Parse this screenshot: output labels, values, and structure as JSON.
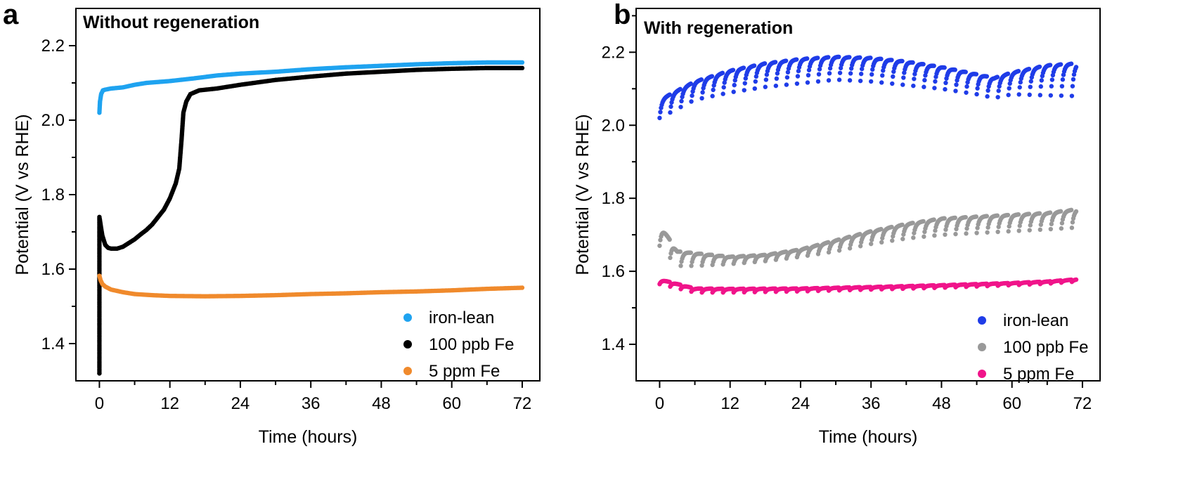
{
  "chart_data": [
    {
      "panel": "a",
      "title": "Without regeneration",
      "type": "scatter",
      "xlabel": "Time (hours)",
      "ylabel": "Potential (V vs RHE)",
      "xlim": [
        -4,
        75
      ],
      "ylim": [
        1.3,
        2.3
      ],
      "xticks": [
        0,
        12,
        24,
        36,
        48,
        60,
        72
      ],
      "yticks": [
        1.4,
        1.6,
        1.8,
        2.0,
        2.2
      ],
      "xtick_labels": [
        "0",
        "12",
        "24",
        "36",
        "48",
        "60",
        "72"
      ],
      "ytick_labels": [
        "1.4",
        "1.6",
        "1.8",
        "2.0",
        "2.2"
      ],
      "legend_position": "bottom-right",
      "grid": false,
      "series": [
        {
          "name": "iron-lean",
          "color": "#1fa3f0",
          "points": [
            [
              0,
              2.02
            ],
            [
              0.1,
              2.05
            ],
            [
              0.3,
              2.07
            ],
            [
              0.6,
              2.08
            ],
            [
              1,
              2.082
            ],
            [
              2,
              2.085
            ],
            [
              4,
              2.088
            ],
            [
              6,
              2.095
            ],
            [
              8,
              2.1
            ],
            [
              12,
              2.105
            ],
            [
              16,
              2.112
            ],
            [
              20,
              2.12
            ],
            [
              24,
              2.125
            ],
            [
              30,
              2.13
            ],
            [
              36,
              2.137
            ],
            [
              42,
              2.142
            ],
            [
              48,
              2.146
            ],
            [
              54,
              2.15
            ],
            [
              60,
              2.153
            ],
            [
              66,
              2.155
            ],
            [
              72,
              2.155
            ]
          ]
        },
        {
          "name": "100 ppb Fe",
          "color": "#000000",
          "points": [
            [
              0,
              1.32
            ],
            [
              0,
              1.74
            ],
            [
              0.2,
              1.72
            ],
            [
              0.5,
              1.69
            ],
            [
              1,
              1.665
            ],
            [
              1.5,
              1.657
            ],
            [
              2,
              1.655
            ],
            [
              3,
              1.655
            ],
            [
              4,
              1.66
            ],
            [
              5,
              1.67
            ],
            [
              6,
              1.68
            ],
            [
              7,
              1.693
            ],
            [
              8,
              1.705
            ],
            [
              9,
              1.72
            ],
            [
              10,
              1.74
            ],
            [
              11,
              1.76
            ],
            [
              12,
              1.79
            ],
            [
              13,
              1.83
            ],
            [
              13.6,
              1.87
            ],
            [
              14,
              1.95
            ],
            [
              14.3,
              2.02
            ],
            [
              14.8,
              2.05
            ],
            [
              15.5,
              2.07
            ],
            [
              17,
              2.08
            ],
            [
              20,
              2.085
            ],
            [
              24,
              2.095
            ],
            [
              30,
              2.108
            ],
            [
              36,
              2.117
            ],
            [
              42,
              2.125
            ],
            [
              48,
              2.13
            ],
            [
              54,
              2.135
            ],
            [
              60,
              2.138
            ],
            [
              66,
              2.14
            ],
            [
              72,
              2.14
            ]
          ]
        },
        {
          "name": "5 ppm Fe",
          "color": "#f08a2c",
          "points": [
            [
              0,
              1.582
            ],
            [
              0.2,
              1.57
            ],
            [
              0.5,
              1.56
            ],
            [
              1,
              1.553
            ],
            [
              2,
              1.545
            ],
            [
              4,
              1.538
            ],
            [
              6,
              1.533
            ],
            [
              9,
              1.53
            ],
            [
              12,
              1.528
            ],
            [
              18,
              1.527
            ],
            [
              24,
              1.528
            ],
            [
              30,
              1.53
            ],
            [
              36,
              1.533
            ],
            [
              42,
              1.535
            ],
            [
              48,
              1.538
            ],
            [
              54,
              1.54
            ],
            [
              60,
              1.543
            ],
            [
              66,
              1.547
            ],
            [
              72,
              1.55
            ]
          ]
        }
      ]
    },
    {
      "panel": "b",
      "title": "With regeneration",
      "type": "scatter",
      "xlabel": "Time (hours)",
      "ylabel": "Potential (V vs RHE)",
      "xlim": [
        -4,
        75
      ],
      "ylim": [
        1.3,
        2.32
      ],
      "xticks": [
        0,
        12,
        24,
        36,
        48,
        60,
        72
      ],
      "yticks": [
        1.4,
        1.6,
        1.8,
        2.0,
        2.2
      ],
      "xtick_labels": [
        "0",
        "12",
        "24",
        "36",
        "48",
        "60",
        "72"
      ],
      "ytick_labels": [
        "1.4",
        "1.6",
        "1.8",
        "2.0",
        "2.2"
      ],
      "legend_position": "bottom-right",
      "grid": false,
      "series": [
        {
          "name": "iron-lean",
          "color": "#1f3ce8",
          "cycle_hours": 1.8,
          "envelope_top": [
            [
              0,
              2.07
            ],
            [
              6,
              2.12
            ],
            [
              12,
              2.15
            ],
            [
              18,
              2.17
            ],
            [
              24,
              2.182
            ],
            [
              30,
              2.188
            ],
            [
              36,
              2.185
            ],
            [
              42,
              2.175
            ],
            [
              48,
              2.16
            ],
            [
              54,
              2.14
            ],
            [
              57,
              2.13
            ],
            [
              60,
              2.145
            ],
            [
              66,
              2.165
            ],
            [
              71,
              2.17
            ]
          ],
          "envelope_bottom": [
            [
              0,
              2.02
            ],
            [
              6,
              2.07
            ],
            [
              12,
              2.09
            ],
            [
              18,
              2.105
            ],
            [
              24,
              2.115
            ],
            [
              30,
              2.125
            ],
            [
              36,
              2.12
            ],
            [
              42,
              2.11
            ],
            [
              48,
              2.1
            ],
            [
              54,
              2.085
            ],
            [
              57,
              2.075
            ],
            [
              60,
              2.085
            ],
            [
              66,
              2.082
            ],
            [
              71,
              2.08
            ]
          ]
        },
        {
          "name": "100 ppb Fe",
          "color": "#999999",
          "cycle_hours": 1.8,
          "envelope_top": [
            [
              0,
              1.73
            ],
            [
              3,
              1.655
            ],
            [
              6,
              1.65
            ],
            [
              12,
              1.64
            ],
            [
              18,
              1.645
            ],
            [
              24,
              1.66
            ],
            [
              30,
              1.685
            ],
            [
              36,
              1.71
            ],
            [
              42,
              1.73
            ],
            [
              48,
              1.745
            ],
            [
              54,
              1.75
            ],
            [
              60,
              1.755
            ],
            [
              66,
              1.76
            ],
            [
              71,
              1.77
            ]
          ],
          "envelope_bottom": [
            [
              0,
              1.67
            ],
            [
              3,
              1.615
            ],
            [
              6,
              1.615
            ],
            [
              12,
              1.62
            ],
            [
              18,
              1.628
            ],
            [
              24,
              1.64
            ],
            [
              30,
              1.655
            ],
            [
              36,
              1.675
            ],
            [
              42,
              1.69
            ],
            [
              48,
              1.7
            ],
            [
              54,
              1.705
            ],
            [
              60,
              1.71
            ],
            [
              66,
              1.715
            ],
            [
              71,
              1.72
            ]
          ]
        },
        {
          "name": "5 ppm Fe",
          "color": "#f0148a",
          "cycle_hours": 1.8,
          "envelope_top": [
            [
              0,
              1.578
            ],
            [
              6,
              1.553
            ],
            [
              12,
              1.552
            ],
            [
              24,
              1.553
            ],
            [
              36,
              1.557
            ],
            [
              48,
              1.562
            ],
            [
              60,
              1.568
            ],
            [
              66,
              1.572
            ],
            [
              71,
              1.578
            ]
          ],
          "envelope_bottom": [
            [
              0,
              1.565
            ],
            [
              6,
              1.542
            ],
            [
              12,
              1.542
            ],
            [
              24,
              1.545
            ],
            [
              36,
              1.55
            ],
            [
              48,
              1.555
            ],
            [
              60,
              1.562
            ],
            [
              66,
              1.566
            ],
            [
              71,
              1.572
            ]
          ]
        }
      ]
    }
  ]
}
